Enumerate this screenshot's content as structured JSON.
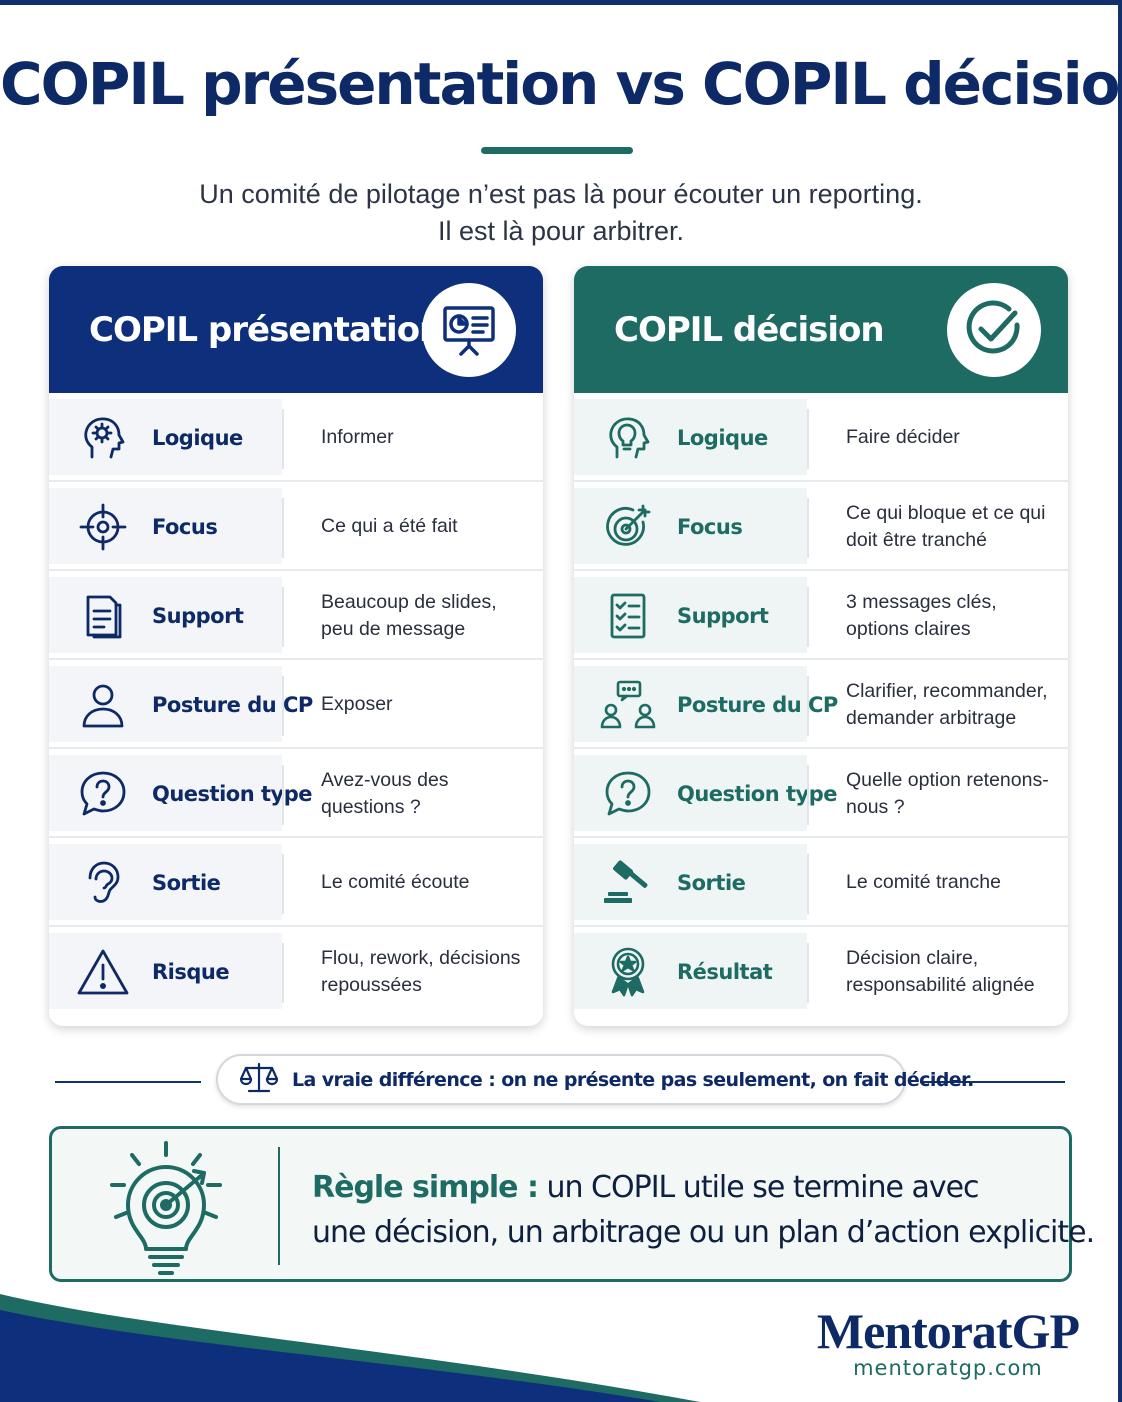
{
  "header": {
    "title": "COPIL présentation vs COPIL décision",
    "subtitle_line1": "Un comité de pilotage n’est pas là pour écouter un reporting.",
    "subtitle_line2": "Il est là pour arbitrer."
  },
  "cards": [
    {
      "title": "COPIL présentation",
      "accent": "#0e2f7b",
      "icon": "presentation-board-icon",
      "rows": [
        {
          "label": "Logique",
          "value": "Informer",
          "icon": "head-gear-icon"
        },
        {
          "label": "Focus",
          "value": "Ce qui a été fait",
          "icon": "crosshair-icon"
        },
        {
          "label": "Support",
          "value": "Beaucoup de slides, peu de message",
          "icon": "document-icon"
        },
        {
          "label": "Posture du CP",
          "value": "Exposer",
          "icon": "person-icon"
        },
        {
          "label": "Question type",
          "value": "Avez-vous des questions ?",
          "icon": "question-bubble-icon"
        },
        {
          "label": "Sortie",
          "value": "Le comité écoute",
          "icon": "ear-icon"
        },
        {
          "label": "Risque",
          "value": "Flou, rework, décisions repoussées",
          "icon": "warning-icon"
        }
      ]
    },
    {
      "title": "COPIL décision",
      "accent": "#1d6b63",
      "icon": "check-circle-icon",
      "rows": [
        {
          "label": "Logique",
          "value": "Faire décider",
          "icon": "head-lightbulb-icon"
        },
        {
          "label": "Focus",
          "value": "Ce qui bloque et ce qui doit être tranché",
          "icon": "target-arrow-icon"
        },
        {
          "label": "Support",
          "value": "3 messages clés, options claires",
          "icon": "checklist-icon"
        },
        {
          "label": "Posture du CP",
          "value": "Clarifier, recommander, demander arbitrage",
          "icon": "people-discussion-icon"
        },
        {
          "label": "Question type",
          "value": "Quelle option retenons-nous ?",
          "icon": "question-bubble-icon"
        },
        {
          "label": "Sortie",
          "value": "Le comité tranche",
          "icon": "gavel-icon"
        },
        {
          "label": "Résultat",
          "value": "Décision claire, responsabilité alignée",
          "icon": "award-ribbon-icon"
        }
      ]
    }
  ],
  "difference": {
    "icon": "scales-icon",
    "text": "La vraie différence : on ne présente pas seulement, on fait décider."
  },
  "rule": {
    "icon": "lightbulb-target-icon",
    "key": "Règle simple :",
    "line1": " un COPIL utile se termine avec",
    "line2": "une décision, un arbitrage ou un plan d’action explicite."
  },
  "brand": {
    "name": "MentoratGP",
    "url": "mentoratgp.com"
  },
  "colors": {
    "navy": "#0e2f7b",
    "teal": "#1d6b63"
  }
}
